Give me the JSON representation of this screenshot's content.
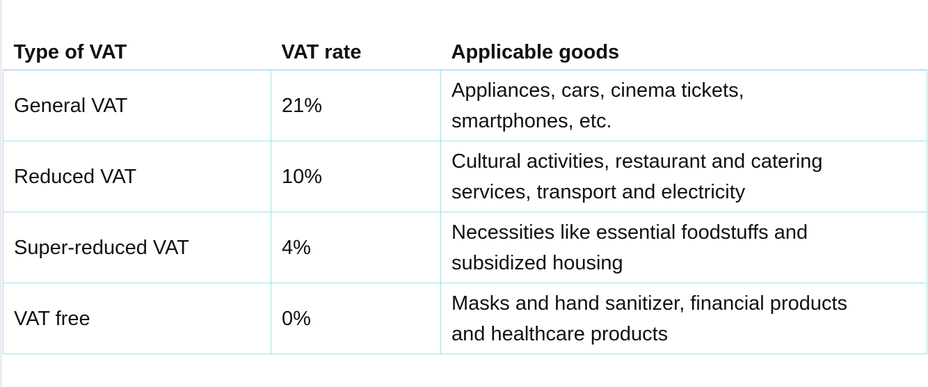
{
  "vat_table": {
    "headers": {
      "type": "Type of VAT",
      "rate": "VAT rate",
      "goods": "Applicable goods"
    },
    "rows": [
      {
        "type": "General VAT",
        "rate": "21%",
        "goods_line1": "Appliances, cars, cinema tickets,",
        "goods_line2": "smartphones, etc."
      },
      {
        "type": "Reduced VAT",
        "rate": "10%",
        "goods_line1": "Cultural activities, restaurant and catering",
        "goods_line2": "services, transport and electricity"
      },
      {
        "type": "Super-reduced VAT",
        "rate": "4%",
        "goods_line1": "Necessities like essential foodstuffs and",
        "goods_line2": "subsidized housing"
      },
      {
        "type": "VAT free",
        "rate": "0%",
        "goods_line1": "Masks and hand sanitizer, financial products",
        "goods_line2": "and healthcare products"
      }
    ]
  },
  "colors": {
    "border": "#9fe3e6",
    "text": "#111111"
  }
}
